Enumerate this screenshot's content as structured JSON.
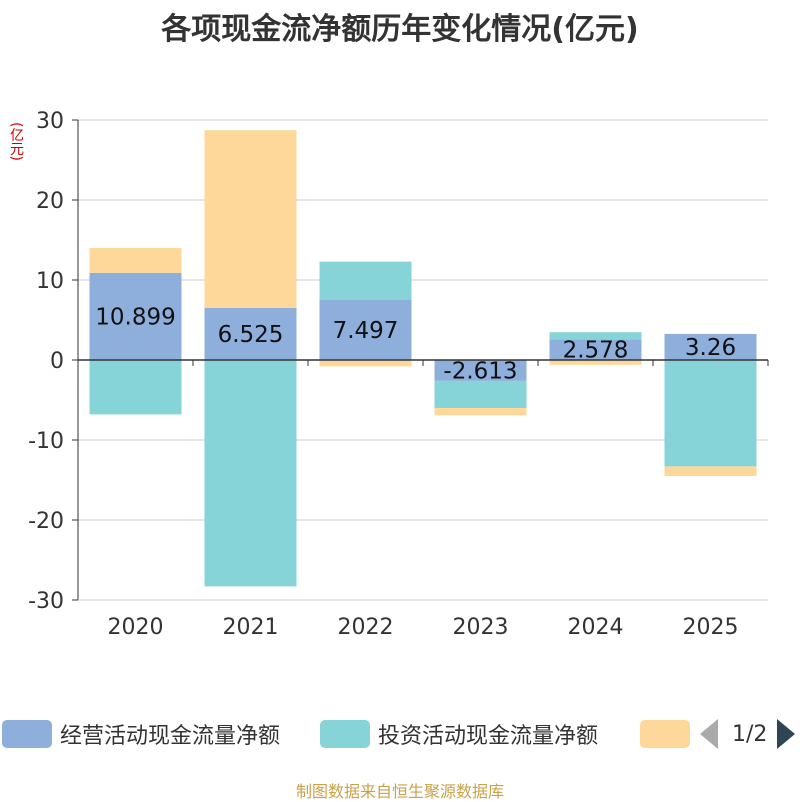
{
  "title": "各项现金流净额历年变化情况(亿元)",
  "unit": "(亿元)",
  "footer": "制图数据来自恒生聚源数据库",
  "legend": {
    "items": [
      {
        "name": "经营活动现金流量净额",
        "color": "#8eaedb"
      },
      {
        "name": "投资活动现金流量净额",
        "color": "#87d4d8"
      },
      {
        "name": "",
        "color": "#fdd89a"
      }
    ],
    "pager": "1/2"
  },
  "chart_data": {
    "type": "bar",
    "stacked": true,
    "title": "各项现金流净额历年变化情况(亿元)",
    "ylabel": "(亿元)",
    "ylim": [
      -30,
      30
    ],
    "yticks": [
      30,
      20,
      10,
      0,
      -10,
      -20,
      -30
    ],
    "categories": [
      "2020",
      "2021",
      "2022",
      "2023",
      "2024",
      "2025"
    ],
    "series": [
      {
        "name": "经营活动现金流量净额",
        "color": "#8eaedb",
        "values": [
          10.899,
          6.525,
          7.497,
          -2.613,
          2.578,
          3.26
        ],
        "labels": [
          "10.899",
          "6.525",
          "7.497",
          "-2.613",
          "2.578",
          "3.26"
        ]
      },
      {
        "name": "投资活动现金流量净额",
        "color": "#87d4d8",
        "values": [
          -6.8,
          -28.3,
          4.8,
          -3.4,
          0.9,
          -13.3
        ]
      },
      {
        "name": "",
        "color": "#fdd89a",
        "values": [
          3.1,
          22.2,
          -0.8,
          -0.9,
          -0.6,
          -1.2
        ]
      }
    ]
  }
}
